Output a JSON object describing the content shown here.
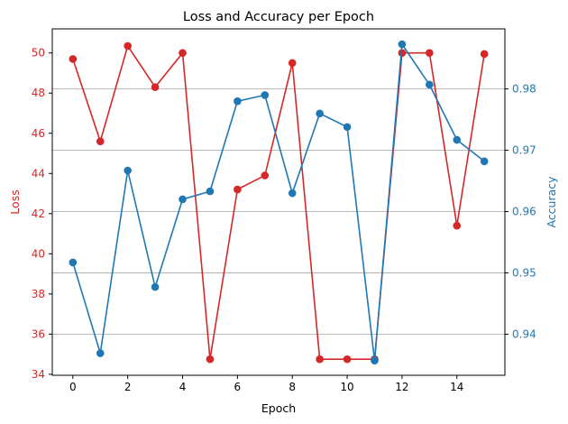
{
  "chart_data": {
    "type": "line",
    "title": "Loss and Accuracy per Epoch",
    "xlabel": "Epoch",
    "x": [
      0,
      1,
      2,
      3,
      4,
      5,
      6,
      7,
      8,
      9,
      10,
      11,
      12,
      13,
      14,
      15
    ],
    "x_ticks": [
      0,
      2,
      4,
      6,
      8,
      10,
      12,
      14
    ],
    "xlim": [
      -0.75,
      15.75
    ],
    "grid": "horizontal lines at right-axis ticks",
    "left_axis": {
      "label": "Loss",
      "color": "#d62728",
      "ylim": [
        33.95,
        51.2
      ],
      "ticks": [
        34,
        36,
        38,
        40,
        42,
        44,
        46,
        48,
        50
      ]
    },
    "right_axis": {
      "label": "Accuracy",
      "color": "#1f77b4",
      "ylim": [
        0.9333,
        0.9898
      ],
      "ticks": [
        0.94,
        0.95,
        0.96,
        0.97,
        0.98
      ],
      "tick_labels": [
        "0.94",
        "0.95",
        "0.96",
        "0.97",
        "0.98"
      ]
    },
    "series": [
      {
        "axis": "left",
        "color": "#d62728",
        "values": [
          49.7,
          45.6,
          50.35,
          48.3,
          50.0,
          34.75,
          43.2,
          43.9,
          49.5,
          34.75,
          34.75,
          34.75,
          50.0,
          50.0,
          41.4,
          49.95
        ]
      },
      {
        "axis": "right",
        "color": "#1f77b4",
        "values": [
          0.9517,
          0.9369,
          0.9667,
          0.9477,
          0.962,
          0.9633,
          0.978,
          0.979,
          0.963,
          0.976,
          0.9738,
          0.9357,
          0.9873,
          0.9807,
          0.9717,
          0.9682
        ]
      }
    ]
  }
}
